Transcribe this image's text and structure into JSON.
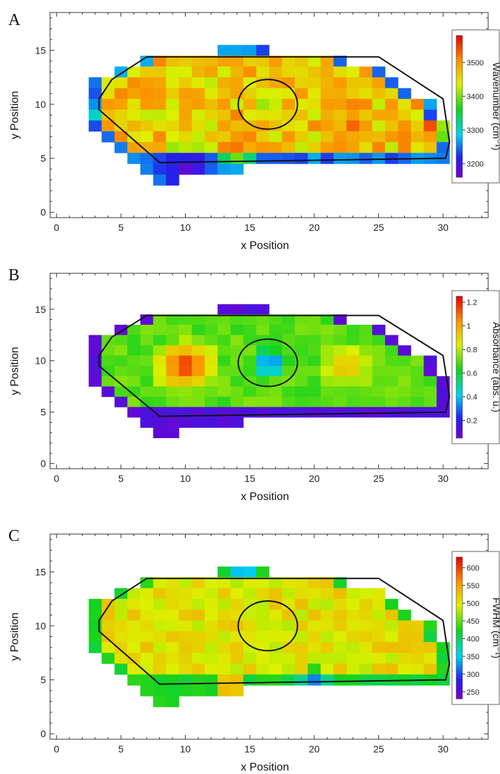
{
  "chart_data": [
    {
      "type": "heatmap",
      "panel_label": "A",
      "xlabel": "x Position",
      "ylabel": "y Position",
      "xlim": [
        -0.5,
        33.5
      ],
      "ylim": [
        -0.5,
        18.5
      ],
      "x_ticks": [
        0,
        5,
        10,
        15,
        20,
        25,
        30
      ],
      "y_ticks": [
        0,
        5,
        10,
        15
      ],
      "colorbar": {
        "label": "Wavenumber (cm⁻¹)",
        "ticks": [
          3200,
          3300,
          3400,
          3500
        ],
        "range": [
          3160,
          3580
        ]
      },
      "field": {
        "rows": [
          {
            "y": 15,
            "x0": 13,
            "x1": 16
          },
          {
            "y": 14,
            "x0": 7,
            "x1": 22
          },
          {
            "y": 13,
            "x0": 5,
            "x1": 25
          },
          {
            "y": 12,
            "x0": 3,
            "x1": 26
          },
          {
            "y": 11,
            "x0": 3,
            "x1": 27
          },
          {
            "y": 10,
            "x0": 3,
            "x1": 29
          },
          {
            "y": 9,
            "x0": 3,
            "x1": 29
          },
          {
            "y": 8,
            "x0": 3,
            "x1": 30
          },
          {
            "y": 7,
            "x0": 4,
            "x1": 30
          },
          {
            "y": 6,
            "x0": 5,
            "x1": 30
          },
          {
            "y": 5,
            "x0": 6,
            "x1": 30
          },
          {
            "y": 4,
            "x0": 7,
            "x1": 14
          },
          {
            "y": 3,
            "x0": 8,
            "x1": 9
          }
        ],
        "base": 3470,
        "noise": 45,
        "edge_value": 3250,
        "hotspots": [
          {
            "x": 16.5,
            "y": 10,
            "r": 1.6,
            "v": 3390
          },
          {
            "x": 7.5,
            "y": 11,
            "r": 1.8,
            "v": 3530
          },
          {
            "x": 29.5,
            "y": 7.5,
            "r": 1.3,
            "v": 3580
          },
          {
            "x": 23,
            "y": 8,
            "r": 2.0,
            "v": 3530
          },
          {
            "x": 14,
            "y": 6,
            "r": 2.0,
            "v": 3520
          },
          {
            "x": 10,
            "y": 4,
            "r": 2.5,
            "v": 3180
          },
          {
            "x": 3,
            "y": 9,
            "r": 1.0,
            "v": 3300
          }
        ],
        "seed": 7
      },
      "outline": [
        [
          3.3,
          10.5
        ],
        [
          4.3,
          12.3
        ],
        [
          7,
          14.4
        ],
        [
          25,
          14.4
        ],
        [
          30,
          10.5
        ],
        [
          30.5,
          6.5
        ],
        [
          30.2,
          5
        ],
        [
          8,
          4.6
        ],
        [
          3.3,
          9.5
        ]
      ],
      "circle": {
        "x": 16.4,
        "y": 10,
        "r": 2.3
      }
    },
    {
      "type": "heatmap",
      "panel_label": "B",
      "xlabel": "x Position",
      "ylabel": "y Position",
      "xlim": [
        -0.5,
        33.5
      ],
      "ylim": [
        -0.5,
        18.5
      ],
      "x_ticks": [
        0,
        5,
        10,
        15,
        20,
        25,
        30
      ],
      "y_ticks": [
        0,
        5,
        10,
        15
      ],
      "colorbar": {
        "label": "Absorbance (abs. u.)",
        "ticks": [
          0.2,
          0.4,
          0.6,
          0.8,
          1.0,
          1.2
        ],
        "range": [
          0.05,
          1.25
        ]
      },
      "field": {
        "rows": [
          {
            "y": 15,
            "x0": 13,
            "x1": 16
          },
          {
            "y": 14,
            "x0": 7,
            "x1": 22
          },
          {
            "y": 13,
            "x0": 5,
            "x1": 25
          },
          {
            "y": 12,
            "x0": 3,
            "x1": 26
          },
          {
            "y": 11,
            "x0": 3,
            "x1": 27
          },
          {
            "y": 10,
            "x0": 3,
            "x1": 29
          },
          {
            "y": 9,
            "x0": 3,
            "x1": 29
          },
          {
            "y": 8,
            "x0": 3,
            "x1": 30
          },
          {
            "y": 7,
            "x0": 4,
            "x1": 30
          },
          {
            "y": 6,
            "x0": 5,
            "x1": 30
          },
          {
            "y": 5,
            "x0": 6,
            "x1": 30
          },
          {
            "y": 4,
            "x0": 7,
            "x1": 14
          },
          {
            "y": 3,
            "x0": 8,
            "x1": 9
          }
        ],
        "base": 0.7,
        "noise": 0.05,
        "edge_value": 0.12,
        "hotspots": [
          {
            "x": 10,
            "y": 9.5,
            "r": 3.0,
            "v": 1.22
          },
          {
            "x": 16.5,
            "y": 9.7,
            "r": 1.7,
            "v": 0.2
          },
          {
            "x": 22.5,
            "y": 9.5,
            "r": 2.5,
            "v": 1.0
          },
          {
            "x": 27,
            "y": 8,
            "r": 2.0,
            "v": 0.75
          }
        ],
        "seed": 11
      },
      "outline": [
        [
          3.3,
          10.5
        ],
        [
          4.3,
          12.3
        ],
        [
          7,
          14.4
        ],
        [
          25,
          14.4
        ],
        [
          30,
          10.5
        ],
        [
          30.5,
          6.5
        ],
        [
          30.2,
          5
        ],
        [
          8,
          4.6
        ],
        [
          3.3,
          9.5
        ]
      ],
      "circle": {
        "x": 16.4,
        "y": 9.8,
        "r": 2.3
      }
    },
    {
      "type": "heatmap",
      "panel_label": "C",
      "xlabel": "x Position",
      "ylabel": "y Position",
      "xlim": [
        -0.5,
        33.5
      ],
      "ylim": [
        -0.5,
        18.5
      ],
      "x_ticks": [
        0,
        5,
        10,
        15,
        20,
        25,
        30
      ],
      "y_ticks": [
        0,
        5,
        10,
        15
      ],
      "colorbar": {
        "label": "FWHM (cm⁻¹)",
        "ticks": [
          250,
          300,
          350,
          400,
          450,
          500,
          550,
          600
        ],
        "range": [
          230,
          630
        ]
      },
      "field": {
        "rows": [
          {
            "y": 15,
            "x0": 13,
            "x1": 16
          },
          {
            "y": 14,
            "x0": 7,
            "x1": 22
          },
          {
            "y": 13,
            "x0": 5,
            "x1": 25
          },
          {
            "y": 12,
            "x0": 3,
            "x1": 26
          },
          {
            "y": 11,
            "x0": 3,
            "x1": 27
          },
          {
            "y": 10,
            "x0": 3,
            "x1": 29
          },
          {
            "y": 9,
            "x0": 3,
            "x1": 29
          },
          {
            "y": 8,
            "x0": 3,
            "x1": 30
          },
          {
            "y": 7,
            "x0": 4,
            "x1": 30
          },
          {
            "y": 6,
            "x0": 5,
            "x1": 30
          },
          {
            "y": 5,
            "x0": 6,
            "x1": 30
          },
          {
            "y": 4,
            "x0": 7,
            "x1": 14
          },
          {
            "y": 3,
            "x0": 8,
            "x1": 9
          }
        ],
        "base": 505,
        "noise": 25,
        "edge_value": 420,
        "hotspots": [
          {
            "x": 13.5,
            "y": 4.5,
            "r": 1.5,
            "v": 620
          },
          {
            "x": 16.5,
            "y": 10,
            "r": 1.4,
            "v": 470
          },
          {
            "x": 20,
            "y": 5,
            "r": 1.5,
            "v": 320
          },
          {
            "x": 14.5,
            "y": 15,
            "r": 1.2,
            "v": 290
          },
          {
            "x": 25.5,
            "y": 13,
            "r": 1.0,
            "v": 590
          }
        ],
        "seed": 23
      },
      "outline": [
        [
          3.3,
          10.5
        ],
        [
          4.3,
          12.3
        ],
        [
          7,
          14.4
        ],
        [
          25,
          14.4
        ],
        [
          30,
          10.5
        ],
        [
          30.5,
          6.5
        ],
        [
          30.2,
          5
        ],
        [
          8,
          4.6
        ],
        [
          3.3,
          9.5
        ]
      ],
      "circle": {
        "x": 16.4,
        "y": 10,
        "r": 2.3
      }
    }
  ]
}
